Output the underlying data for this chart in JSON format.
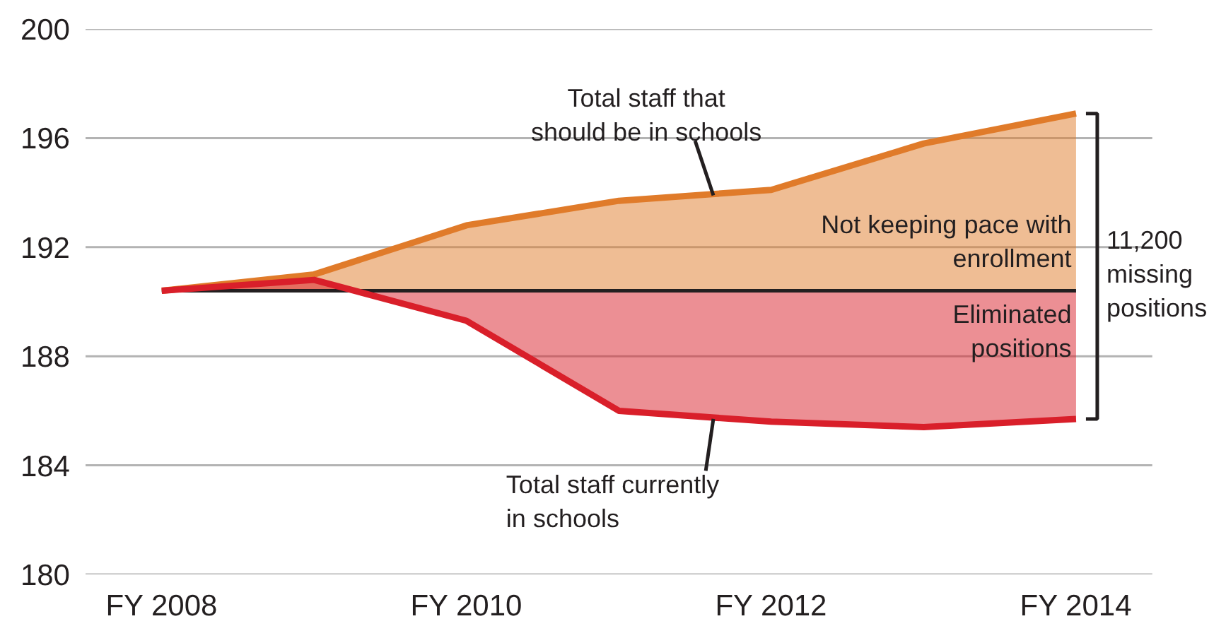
{
  "chart_data": {
    "type": "line",
    "categories": [
      "FY 2008",
      null,
      "FY 2010",
      null,
      "FY 2012",
      null,
      "FY 2014"
    ],
    "series": [
      {
        "color": "#e07b2a",
        "values": [
          190.4,
          191.0,
          192.8,
          193.7,
          194.1,
          195.8,
          196.9
        ],
        "lower": [
          190.4,
          190.4,
          190.4,
          190.4,
          190.4,
          190.4,
          190.4
        ],
        "upper": [
          190.4,
          191.0,
          192.8,
          193.7,
          194.1,
          195.8,
          196.9
        ]
      },
      {
        "color": "#d91f2a",
        "values": [
          190.4,
          190.8,
          189.3,
          186.0,
          185.6,
          185.4,
          185.7
        ],
        "lower": [
          190.4,
          190.8,
          189.3,
          186.0,
          185.6,
          185.4,
          185.7
        ],
        "upper": [
          190.4,
          190.4,
          190.4,
          190.4,
          190.4,
          190.4,
          190.4
        ]
      }
    ],
    "ylim": [
      180,
      200
    ],
    "yticks": [
      180,
      184,
      188,
      192,
      196,
      200
    ],
    "ref_lines": [
      {
        "axis": "y",
        "value": 190.4,
        "color": "#231f20"
      }
    ],
    "annotations": [
      {
        "text": "Total staff that\nshould be in schools",
        "y": 193.9
      },
      {
        "text": "Total staff currently\nin schools",
        "y": 185.7
      },
      "Not keeping pace with\nenrollment",
      "Eliminated\npositions",
      "11,200\nmissing\npositions"
    ],
    "grid": "y",
    "marker": "none",
    "line_style": "solid"
  }
}
